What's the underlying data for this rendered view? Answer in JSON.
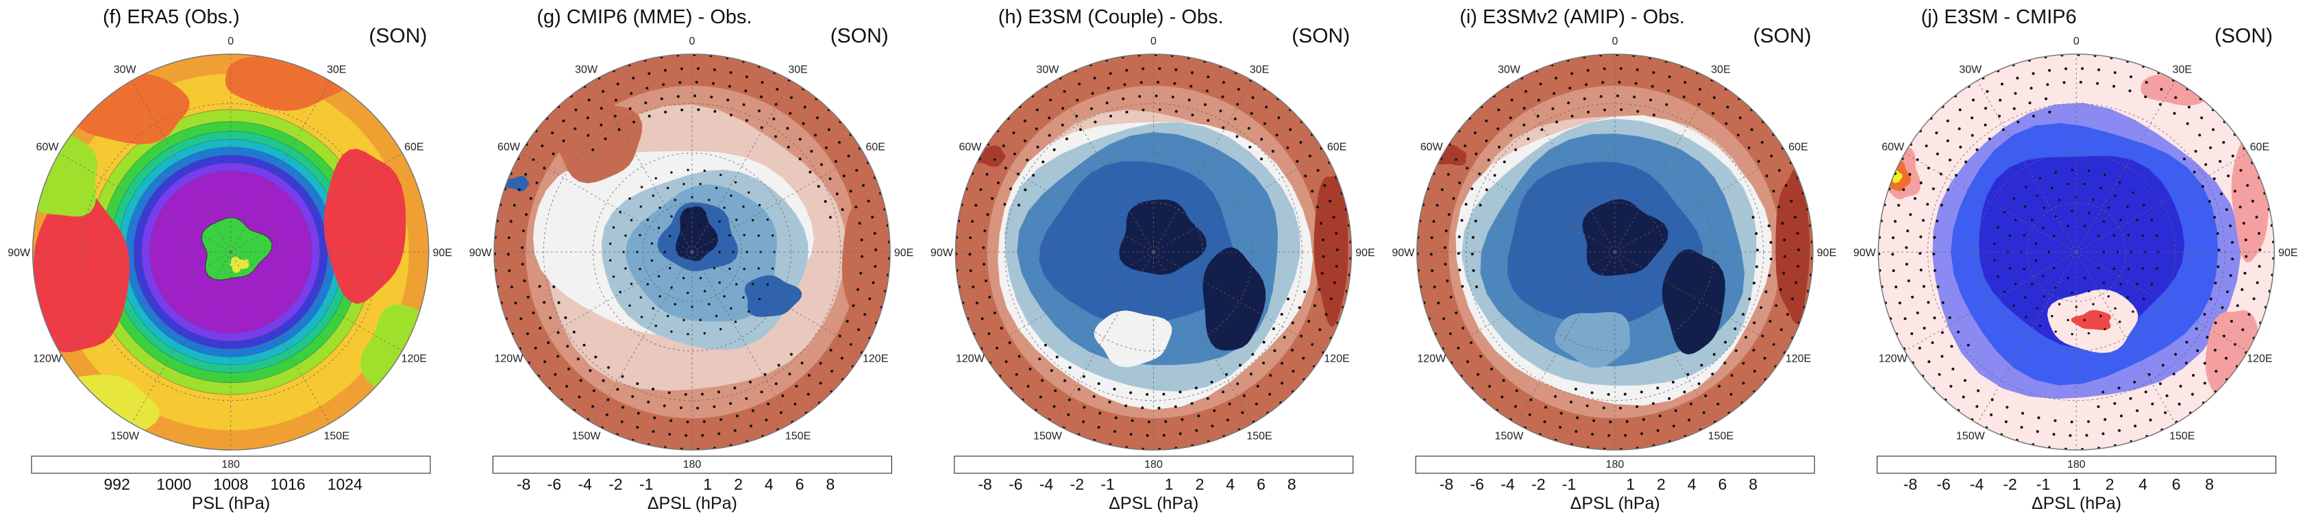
{
  "panels": [
    {
      "id": "f",
      "title": "(f) ERA5 (Obs.)",
      "season": "(SON)",
      "kind": "absolute",
      "colorbar": {
        "title": "PSL (hPa)",
        "colors": [
          "#a020c8",
          "#7a3cf0",
          "#3a3ad6",
          "#1e7ad8",
          "#18b8c8",
          "#1ec88a",
          "#3ad040",
          "#9ee02c",
          "#e6e63c",
          "#f6c832",
          "#f0a032",
          "#ee7030",
          "#ee3c46",
          "#f0148c"
        ],
        "ticks": [
          "992",
          "1000",
          "1008",
          "1016",
          "1024"
        ]
      }
    },
    {
      "id": "g",
      "title": "(g) CMIP6 (MME) - Obs.",
      "season": "(SON)",
      "kind": "difference",
      "colorbar": {
        "title": "ΔPSL (hPa)",
        "colors": [
          "#141e4a",
          "#1f3a8c",
          "#2f63ad",
          "#4d86bd",
          "#7aa9cb",
          "#a8c5d6",
          "#f2f2f2",
          "#e9c8bd",
          "#d7957f",
          "#c56b52",
          "#a83c2c",
          "#7f1b22",
          "#4e0b12"
        ],
        "ticks": [
          "-8",
          "-6",
          "-4",
          "-2",
          "-1",
          "1",
          "2",
          "4",
          "6",
          "8"
        ]
      }
    },
    {
      "id": "h",
      "title": "(h) E3SM (Couple) - Obs.",
      "season": "(SON)",
      "kind": "difference",
      "colorbar": {
        "title": "ΔPSL (hPa)",
        "colors": [
          "#141e4a",
          "#1f3a8c",
          "#2f63ad",
          "#4d86bd",
          "#7aa9cb",
          "#a8c5d6",
          "#f2f2f2",
          "#e9c8bd",
          "#d7957f",
          "#c56b52",
          "#a83c2c",
          "#7f1b22",
          "#4e0b12"
        ],
        "ticks": [
          "-8",
          "-6",
          "-4",
          "-2",
          "-1",
          "1",
          "2",
          "4",
          "6",
          "8"
        ]
      }
    },
    {
      "id": "i",
      "title": "(i) E3SMv2 (AMIP) - Obs.",
      "season": "(SON)",
      "kind": "difference",
      "colorbar": {
        "title": "ΔPSL (hPa)",
        "colors": [
          "#141e4a",
          "#1f3a8c",
          "#2f63ad",
          "#4d86bd",
          "#7aa9cb",
          "#a8c5d6",
          "#f2f2f2",
          "#e9c8bd",
          "#d7957f",
          "#c56b52",
          "#a83c2c",
          "#7f1b22",
          "#4e0b12"
        ],
        "ticks": [
          "-8",
          "-6",
          "-4",
          "-2",
          "-1",
          "1",
          "2",
          "4",
          "6",
          "8"
        ]
      }
    },
    {
      "id": "j",
      "title": "(j) E3SM - CMIP6",
      "season": "(SON)",
      "kind": "model-diff",
      "colorbar": {
        "title": "ΔPSL (hPa)",
        "colors": [
          "#16e8f0",
          "#3c9cf6",
          "#3d5ef0",
          "#2c2cd6",
          "#8a8af2",
          "#fde6e6",
          "#f5a0a0",
          "#ee4848",
          "#ee6e30",
          "#f0a030",
          "#f5d030",
          "#f0f020"
        ],
        "ticks": [
          "-8",
          "-6",
          "-4",
          "-2",
          "-1",
          "1",
          "2",
          "4",
          "6",
          "8"
        ]
      }
    }
  ],
  "longitude_labels": [
    "0",
    "30E",
    "60E",
    "90E",
    "120E",
    "150E",
    "180",
    "150W",
    "120W",
    "90W",
    "60W",
    "30W"
  ]
}
